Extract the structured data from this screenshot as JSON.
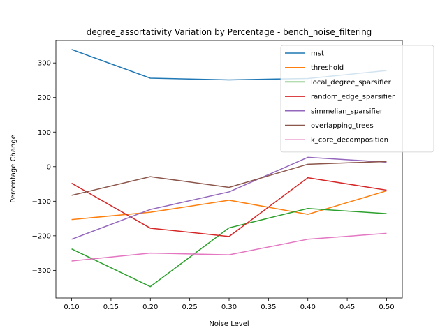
{
  "chart_data": {
    "type": "line",
    "title": "degree_assortativity Variation by Percentage - bench_noise_filtering",
    "xlabel": "Noise Level",
    "ylabel": "Percentage Change",
    "x": [
      0.1,
      0.2,
      0.3,
      0.4,
      0.5
    ],
    "xlim": [
      0.08,
      0.52
    ],
    "ylim": [
      -380,
      365
    ],
    "xticks": [
      "0.10",
      "0.15",
      "0.20",
      "0.25",
      "0.30",
      "0.35",
      "0.40",
      "0.45",
      "0.50"
    ],
    "yticks": [
      "−300",
      "−200",
      "−100",
      "0",
      "100",
      "200",
      "300"
    ],
    "grid": false,
    "legend": "top-right",
    "series": [
      {
        "name": "mst",
        "color": "#1f77b4",
        "values": [
          339,
          256,
          251,
          255,
          278
        ]
      },
      {
        "name": "threshold",
        "color": "#ff7f0e",
        "values": [
          -153,
          -132,
          -97,
          -138,
          -70
        ]
      },
      {
        "name": "local_degree_sparsifier",
        "color": "#2ca02c",
        "values": [
          -238,
          -347,
          -177,
          -121,
          -136
        ]
      },
      {
        "name": "random_edge_sparsifier",
        "color": "#d62728",
        "values": [
          -48,
          -178,
          -202,
          -32,
          -68
        ]
      },
      {
        "name": "simmelian_sparsifier",
        "color": "#9467bd",
        "values": [
          -210,
          -124,
          -73,
          27,
          13
        ]
      },
      {
        "name": "overlapping_trees",
        "color": "#8c564b",
        "values": [
          -83,
          -29,
          -60,
          7,
          15
        ]
      },
      {
        "name": "k_core_decomposition",
        "color": "#e377c2",
        "values": [
          -273,
          -250,
          -255,
          -210,
          -193
        ]
      }
    ]
  }
}
